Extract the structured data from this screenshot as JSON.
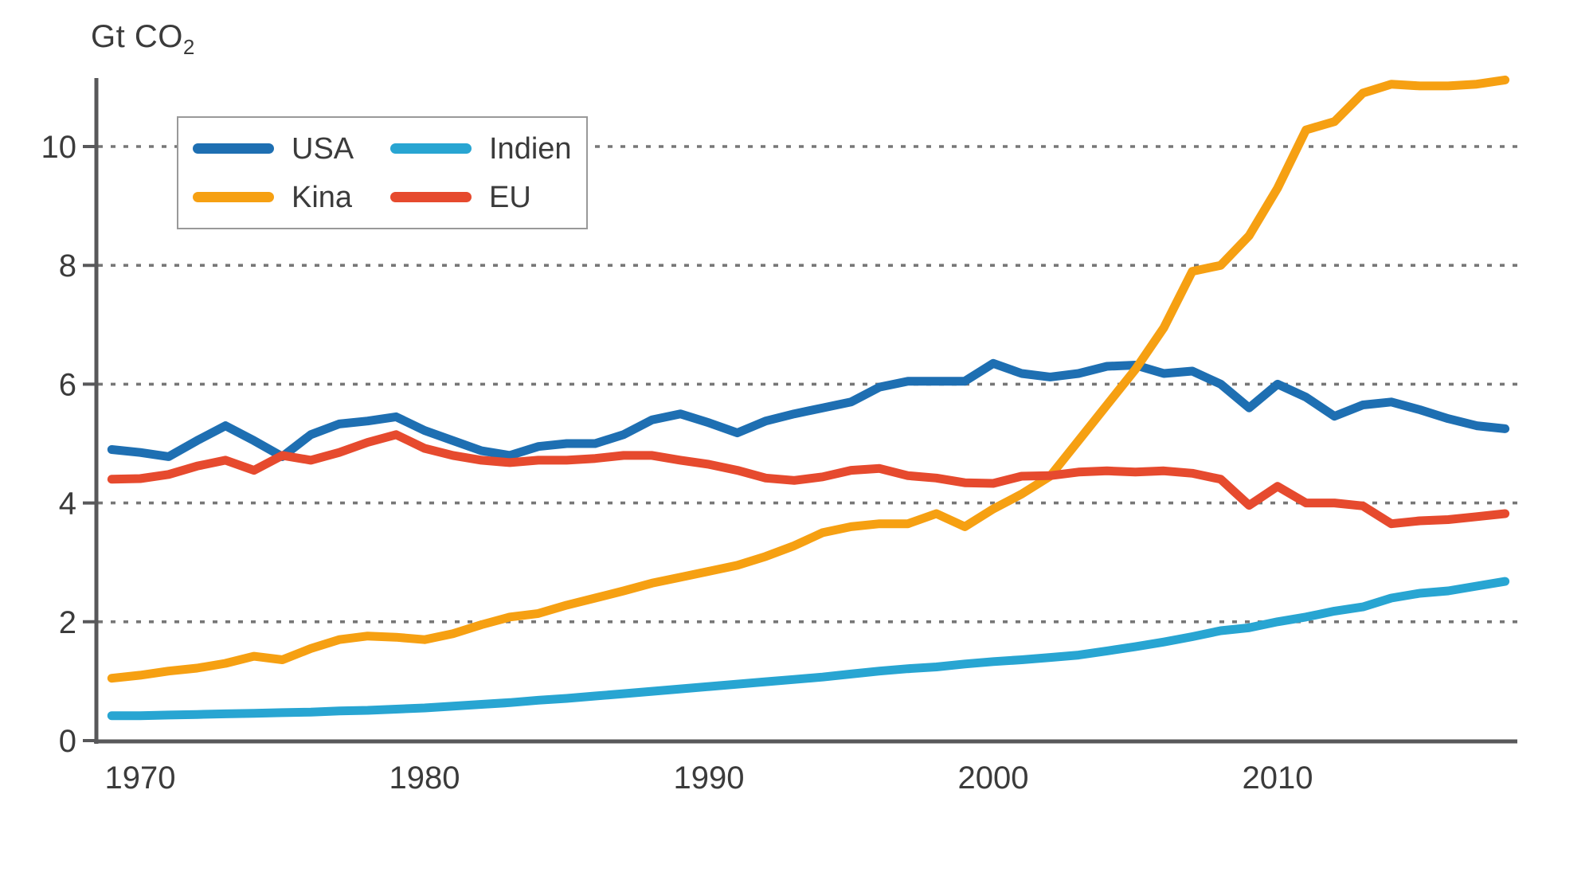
{
  "chart_data": {
    "type": "line",
    "title": {
      "unit_main": "Gt CO",
      "unit_sub": "2"
    },
    "xlabel": "",
    "ylabel": "Gt CO2",
    "x": [
      1969,
      1970,
      1971,
      1972,
      1973,
      1974,
      1975,
      1976,
      1977,
      1978,
      1979,
      1980,
      1981,
      1982,
      1983,
      1984,
      1985,
      1986,
      1987,
      1988,
      1989,
      1990,
      1991,
      1992,
      1993,
      1994,
      1995,
      1996,
      1997,
      1998,
      1999,
      2000,
      2001,
      2002,
      2003,
      2004,
      2005,
      2006,
      2007,
      2008,
      2009,
      2010,
      2011,
      2012,
      2013,
      2014,
      2015,
      2016,
      2017,
      2018
    ],
    "x_ticks": [
      1970,
      1980,
      1990,
      2000,
      2010
    ],
    "y_ticks": [
      0,
      2,
      4,
      6,
      8,
      10
    ],
    "ylim": [
      0,
      11.6
    ],
    "grid": "horizontal-dotted",
    "legend_position": "top-left-box",
    "axis_color": "#58585a",
    "grid_color": "#777777",
    "text_color": "#3b3b3b",
    "series": [
      {
        "name": "USA",
        "color": "#1E6FB2",
        "values": [
          4.9,
          4.85,
          4.78,
          5.05,
          5.3,
          5.05,
          4.78,
          5.15,
          5.33,
          5.38,
          5.45,
          5.22,
          5.05,
          4.88,
          4.8,
          4.95,
          5.0,
          5.0,
          5.15,
          5.4,
          5.5,
          5.35,
          5.18,
          5.38,
          5.5,
          5.6,
          5.7,
          5.95,
          6.05,
          6.05,
          6.05,
          6.35,
          6.18,
          6.12,
          6.18,
          6.3,
          6.32,
          6.18,
          6.22,
          6.0,
          5.6,
          6.0,
          5.78,
          5.46,
          5.65,
          5.7,
          5.57,
          5.42,
          5.3,
          5.25
        ]
      },
      {
        "name": "Kina",
        "color": "#F6A012",
        "values": [
          1.05,
          1.1,
          1.17,
          1.22,
          1.3,
          1.42,
          1.36,
          1.55,
          1.7,
          1.76,
          1.74,
          1.7,
          1.8,
          1.95,
          2.08,
          2.14,
          2.28,
          2.4,
          2.52,
          2.65,
          2.75,
          2.85,
          2.95,
          3.1,
          3.28,
          3.5,
          3.6,
          3.65,
          3.65,
          3.82,
          3.6,
          3.9,
          4.15,
          4.45,
          5.05,
          5.65,
          6.25,
          6.95,
          7.9,
          8.0,
          8.5,
          9.3,
          10.28,
          10.42,
          10.9,
          11.05,
          11.02,
          11.02,
          11.05,
          11.12
        ]
      },
      {
        "name": "Indien",
        "color": "#28A5D2",
        "values": [
          0.42,
          0.42,
          0.43,
          0.44,
          0.45,
          0.46,
          0.47,
          0.48,
          0.5,
          0.51,
          0.53,
          0.55,
          0.58,
          0.61,
          0.64,
          0.68,
          0.71,
          0.75,
          0.79,
          0.83,
          0.87,
          0.91,
          0.95,
          0.99,
          1.03,
          1.07,
          1.12,
          1.17,
          1.21,
          1.24,
          1.29,
          1.33,
          1.36,
          1.4,
          1.44,
          1.51,
          1.58,
          1.66,
          1.75,
          1.85,
          1.9,
          2.0,
          2.08,
          2.18,
          2.25,
          2.4,
          2.48,
          2.52,
          2.6,
          2.68
        ]
      },
      {
        "name": "EU",
        "color": "#E64A2E",
        "values": [
          4.4,
          4.41,
          4.48,
          4.62,
          4.72,
          4.55,
          4.8,
          4.72,
          4.85,
          5.02,
          5.15,
          4.92,
          4.8,
          4.72,
          4.68,
          4.72,
          4.72,
          4.75,
          4.8,
          4.8,
          4.72,
          4.65,
          4.55,
          4.42,
          4.38,
          4.44,
          4.55,
          4.58,
          4.46,
          4.42,
          4.34,
          4.33,
          4.45,
          4.46,
          4.52,
          4.54,
          4.52,
          4.54,
          4.5,
          4.4,
          3.96,
          4.28,
          4.0,
          4.0,
          3.95,
          3.65,
          3.7,
          3.72,
          3.77,
          3.82
        ]
      }
    ],
    "legend_order": [
      "USA",
      "Indien",
      "Kina",
      "EU"
    ]
  }
}
